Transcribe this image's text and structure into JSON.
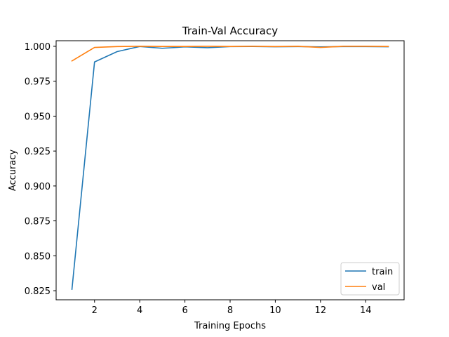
{
  "chart_data": {
    "type": "line",
    "title": "Train-Val Accuracy",
    "xlabel": "Training Epochs",
    "ylabel": "Accuracy",
    "xlim": [
      0.3,
      15.7
    ],
    "ylim": [
      0.8185,
      1.004
    ],
    "x_ticks": [
      2,
      4,
      6,
      8,
      10,
      12,
      14
    ],
    "y_ticks": [
      0.825,
      0.85,
      0.875,
      0.9,
      0.925,
      0.95,
      0.975,
      1.0
    ],
    "grid": false,
    "legend_position": "lower-right",
    "x": [
      1,
      2,
      3,
      4,
      5,
      6,
      7,
      8,
      9,
      10,
      11,
      12,
      13,
      14,
      15
    ],
    "series": [
      {
        "name": "train",
        "color": "#1f77b4",
        "values": [
          0.826,
          0.9888,
          0.9962,
          0.9999,
          0.9986,
          0.9996,
          0.999,
          0.9998,
          0.9999,
          0.9997,
          0.9998,
          0.9996,
          0.9998,
          0.9998,
          0.9997
        ]
      },
      {
        "name": "val",
        "color": "#ff7f0e",
        "values": [
          0.9895,
          0.9992,
          0.9998,
          1.0,
          0.9999,
          0.9999,
          1.0,
          0.9999,
          1.0,
          0.9998,
          1.0,
          0.9992,
          1.0,
          1.0,
          0.9999
        ]
      }
    ]
  }
}
